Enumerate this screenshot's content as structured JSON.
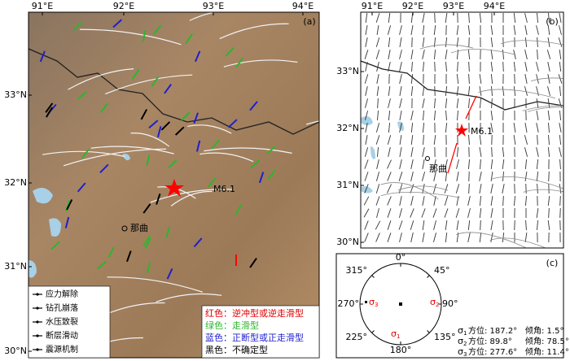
{
  "panel_a": {
    "label": "(a)",
    "lon_ticks": [
      "91°E",
      "92°E",
      "93°E",
      "94°E"
    ],
    "lat_ticks": [
      "33°N",
      "32°N",
      "31°N",
      "30°N"
    ],
    "epicenter": "M6.1",
    "city": "那曲",
    "method_legend": [
      "应力解除",
      "钻孔崩落",
      "水压致裂",
      "断层滑动",
      "震源机制"
    ],
    "color_legend": [
      "红色：逆冲型或逆走滑型",
      "绿色：走滑型",
      "蓝色：正断型或正走滑型",
      "黑色：不确定型"
    ]
  },
  "panel_b": {
    "label": "(b)",
    "lon_ticks": [
      "91°E",
      "92°E",
      "93°E",
      "94°E"
    ],
    "lat_ticks": [
      "33°N",
      "32°N",
      "31°N",
      "30°N"
    ],
    "epicenter": "M6.1",
    "city": "那曲"
  },
  "panel_c": {
    "label": "(c)",
    "directions": [
      "0°",
      "45°",
      "90°",
      "135°",
      "180°",
      "225°",
      "270°",
      "315°"
    ],
    "axes": [
      {
        "symbol": "σ",
        "index": "1",
        "azimuth": "方位: 187.2°",
        "dip": "倾角: 1.5°"
      },
      {
        "symbol": "σ",
        "index": "2",
        "azimuth": "方位: 89.8°",
        "dip": "倾角: 78.5°"
      },
      {
        "symbol": "σ",
        "index": "3",
        "azimuth": "方位: 277.6°",
        "dip": "倾角: 11.4°"
      }
    ]
  }
}
